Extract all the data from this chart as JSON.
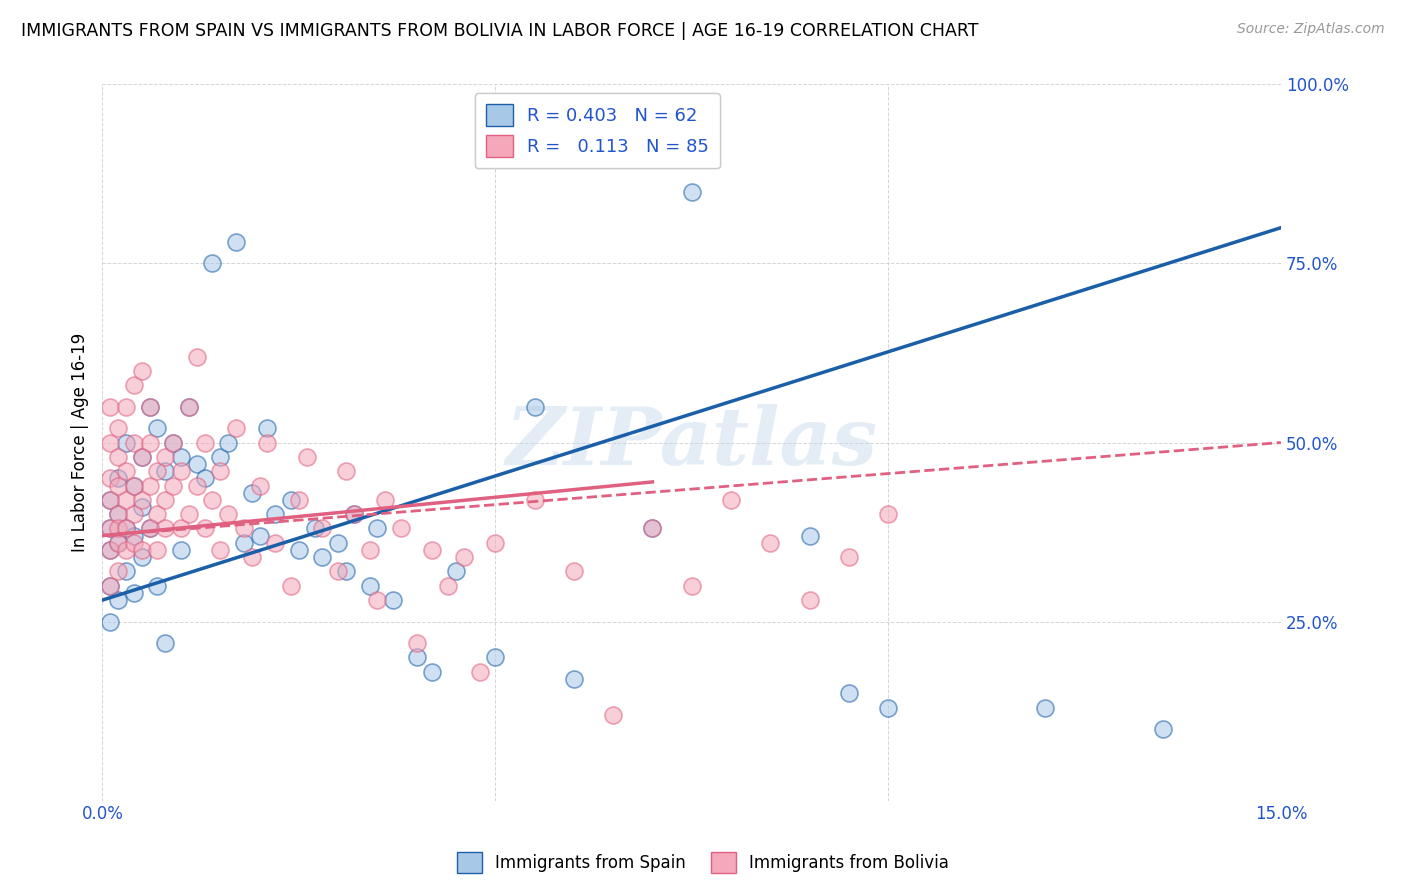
{
  "title": "IMMIGRANTS FROM SPAIN VS IMMIGRANTS FROM BOLIVIA IN LABOR FORCE | AGE 16-19 CORRELATION CHART",
  "source": "Source: ZipAtlas.com",
  "ylabel": "In Labor Force | Age 16-19",
  "legend_label1": "Immigrants from Spain",
  "legend_label2": "Immigrants from Bolivia",
  "R1": 0.403,
  "N1": 62,
  "R2": 0.113,
  "N2": 85,
  "xlim": [
    0.0,
    0.15
  ],
  "ylim": [
    0.0,
    1.0
  ],
  "color_spain": "#a8c8e8",
  "color_bolivia": "#f4a8ba",
  "color_spain_line": "#1a5fa8",
  "color_bolivia_line": "#e06080",
  "watermark_text": "ZIPatlas",
  "spain_line_x": [
    0.0,
    0.15
  ],
  "spain_line_y": [
    0.28,
    0.8
  ],
  "bolivia_solid_line_x": [
    0.0,
    0.07
  ],
  "bolivia_solid_line_y": [
    0.37,
    0.445
  ],
  "bolivia_dashed_line_x": [
    0.0,
    0.15
  ],
  "bolivia_dashed_line_y": [
    0.37,
    0.5
  ],
  "spain_x": [
    0.001,
    0.001,
    0.001,
    0.001,
    0.001,
    0.002,
    0.002,
    0.002,
    0.002,
    0.003,
    0.003,
    0.003,
    0.004,
    0.004,
    0.004,
    0.005,
    0.005,
    0.005,
    0.006,
    0.006,
    0.007,
    0.007,
    0.008,
    0.008,
    0.009,
    0.01,
    0.01,
    0.011,
    0.012,
    0.013,
    0.014,
    0.015,
    0.016,
    0.017,
    0.018,
    0.019,
    0.02,
    0.021,
    0.022,
    0.024,
    0.025,
    0.027,
    0.028,
    0.03,
    0.031,
    0.032,
    0.034,
    0.035,
    0.037,
    0.04,
    0.042,
    0.045,
    0.05,
    0.055,
    0.06,
    0.07,
    0.075,
    0.09,
    0.095,
    0.1,
    0.12,
    0.135
  ],
  "spain_y": [
    0.38,
    0.35,
    0.42,
    0.3,
    0.25,
    0.4,
    0.36,
    0.45,
    0.28,
    0.38,
    0.32,
    0.5,
    0.44,
    0.37,
    0.29,
    0.48,
    0.34,
    0.41,
    0.55,
    0.38,
    0.52,
    0.3,
    0.46,
    0.22,
    0.5,
    0.35,
    0.48,
    0.55,
    0.47,
    0.45,
    0.75,
    0.48,
    0.5,
    0.78,
    0.36,
    0.43,
    0.37,
    0.52,
    0.4,
    0.42,
    0.35,
    0.38,
    0.34,
    0.36,
    0.32,
    0.4,
    0.3,
    0.38,
    0.28,
    0.2,
    0.18,
    0.32,
    0.2,
    0.55,
    0.17,
    0.38,
    0.85,
    0.37,
    0.15,
    0.13,
    0.13,
    0.1
  ],
  "bolivia_x": [
    0.001,
    0.001,
    0.001,
    0.001,
    0.001,
    0.001,
    0.001,
    0.002,
    0.002,
    0.002,
    0.002,
    0.002,
    0.002,
    0.002,
    0.003,
    0.003,
    0.003,
    0.003,
    0.003,
    0.004,
    0.004,
    0.004,
    0.004,
    0.004,
    0.005,
    0.005,
    0.005,
    0.005,
    0.006,
    0.006,
    0.006,
    0.006,
    0.007,
    0.007,
    0.007,
    0.008,
    0.008,
    0.008,
    0.009,
    0.009,
    0.01,
    0.01,
    0.011,
    0.011,
    0.012,
    0.012,
    0.013,
    0.013,
    0.014,
    0.015,
    0.015,
    0.016,
    0.017,
    0.018,
    0.019,
    0.02,
    0.021,
    0.022,
    0.024,
    0.025,
    0.026,
    0.028,
    0.03,
    0.031,
    0.032,
    0.034,
    0.035,
    0.036,
    0.038,
    0.04,
    0.042,
    0.044,
    0.046,
    0.048,
    0.05,
    0.055,
    0.06,
    0.065,
    0.07,
    0.075,
    0.08,
    0.085,
    0.09,
    0.095,
    0.1
  ],
  "bolivia_y": [
    0.38,
    0.42,
    0.35,
    0.45,
    0.3,
    0.5,
    0.55,
    0.4,
    0.36,
    0.44,
    0.32,
    0.48,
    0.38,
    0.52,
    0.42,
    0.38,
    0.46,
    0.35,
    0.55,
    0.4,
    0.44,
    0.36,
    0.5,
    0.58,
    0.42,
    0.48,
    0.35,
    0.6,
    0.38,
    0.44,
    0.55,
    0.5,
    0.4,
    0.46,
    0.35,
    0.42,
    0.48,
    0.38,
    0.44,
    0.5,
    0.38,
    0.46,
    0.55,
    0.4,
    0.44,
    0.62,
    0.38,
    0.5,
    0.42,
    0.46,
    0.35,
    0.4,
    0.52,
    0.38,
    0.34,
    0.44,
    0.5,
    0.36,
    0.3,
    0.42,
    0.48,
    0.38,
    0.32,
    0.46,
    0.4,
    0.35,
    0.28,
    0.42,
    0.38,
    0.22,
    0.35,
    0.3,
    0.34,
    0.18,
    0.36,
    0.42,
    0.32,
    0.12,
    0.38,
    0.3,
    0.42,
    0.36,
    0.28,
    0.34,
    0.4
  ]
}
